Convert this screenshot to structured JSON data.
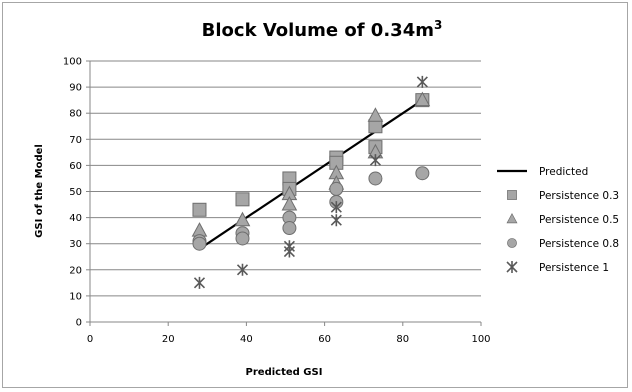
{
  "chart_data": {
    "type": "scatter",
    "title": "Block Volume of 0.34m",
    "title_superscript": "3",
    "xlabel": "Predicted GSI",
    "ylabel": "GSI of the Model",
    "xlim": [
      0,
      100
    ],
    "ylim": [
      0,
      100
    ],
    "x_ticks": [
      "0",
      "20",
      "40",
      "60",
      "80",
      "100"
    ],
    "y_ticks": [
      "0",
      "10",
      "20",
      "30",
      "40",
      "50",
      "60",
      "70",
      "80",
      "90",
      "100"
    ],
    "grid": "horizontal",
    "legend_position": "right",
    "series": [
      {
        "name": "Predicted",
        "kind": "line",
        "color": "#000000",
        "x": [
          28,
          85
        ],
        "y": [
          28,
          85
        ]
      },
      {
        "name": "Persistence 0.3",
        "kind": "marker",
        "marker": "square",
        "color": "#a6a6a6",
        "x": [
          28,
          39,
          51,
          51,
          63,
          63,
          73,
          73,
          85
        ],
        "y": [
          43,
          47,
          55,
          51,
          63,
          61,
          75,
          67,
          85
        ]
      },
      {
        "name": "Persistence 0.5",
        "kind": "marker",
        "marker": "triangle",
        "color": "#a6a6a6",
        "x": [
          28,
          39,
          51,
          51,
          63,
          63,
          73,
          73,
          85
        ],
        "y": [
          35,
          39,
          49,
          45,
          57,
          53,
          79,
          65,
          85
        ]
      },
      {
        "name": "Persistence 0.8",
        "kind": "marker",
        "marker": "circle",
        "color": "#a6a6a6",
        "x": [
          28,
          28,
          39,
          39,
          51,
          51,
          63,
          63,
          73,
          85
        ],
        "y": [
          31,
          30,
          34,
          32,
          40,
          36,
          51,
          46,
          55,
          57
        ]
      },
      {
        "name": "Persistence 1",
        "kind": "marker",
        "marker": "star",
        "color": "#595959",
        "x": [
          28,
          39,
          51,
          51,
          63,
          63,
          73,
          85
        ],
        "y": [
          15,
          20,
          29,
          27,
          44,
          39,
          62,
          92
        ]
      }
    ]
  }
}
